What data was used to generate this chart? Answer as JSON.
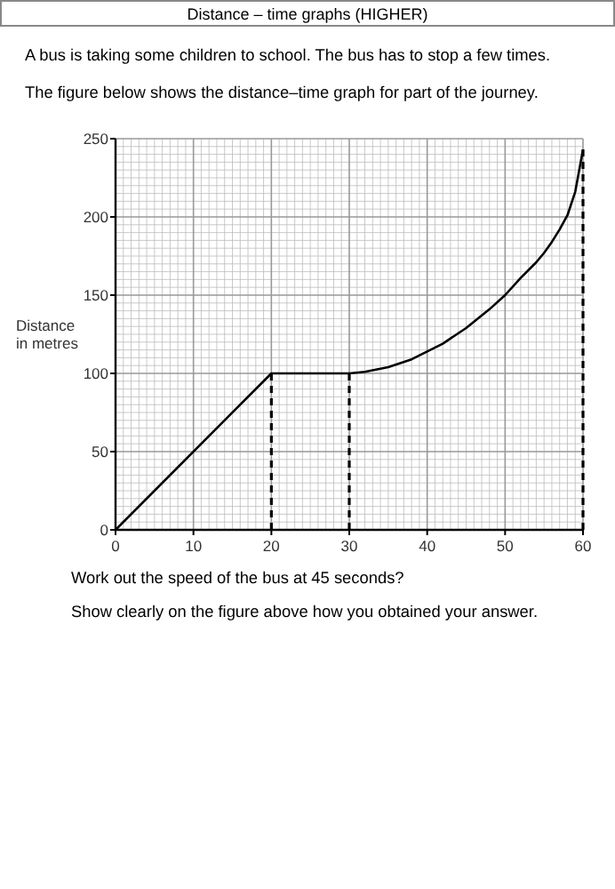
{
  "chart_data": {
    "type": "line",
    "title": "Distance – time graphs (HIGHER)",
    "ylabel": "Distance in metres",
    "annotations": [
      "A bus is taking some children to school.  The bus has to stop a few times.",
      "The figure below shows the distance–time graph for part of the journey.",
      "Work out the speed of the bus at 45 seconds?",
      "Show clearly on the figure above how you obtained your answer."
    ],
    "series": [
      {
        "color": "#000000",
        "x": [
          0,
          20,
          30,
          32,
          35,
          38,
          40,
          42,
          45,
          48,
          50,
          52,
          54,
          55,
          56,
          57,
          58,
          59,
          60
        ],
        "values": [
          0,
          100,
          100,
          101,
          104,
          109,
          114,
          119,
          129,
          141,
          150,
          161,
          171,
          177,
          184,
          192,
          201,
          216,
          243
        ]
      }
    ],
    "xlim": [
      0,
      60
    ],
    "ylim": [
      0,
      250
    ],
    "xticks": [
      0,
      10,
      20,
      30,
      40,
      50,
      60
    ],
    "yticks": [
      0,
      50,
      100,
      150,
      200,
      250
    ],
    "grid": true,
    "marker": "none",
    "line_style": "solid",
    "ref_lines": [
      {
        "axis": "x",
        "value": 20,
        "line_style": "dashed"
      },
      {
        "axis": "x",
        "value": 30,
        "line_style": "dashed"
      },
      {
        "axis": "x",
        "value": 60,
        "line_style": "dashed"
      }
    ]
  }
}
